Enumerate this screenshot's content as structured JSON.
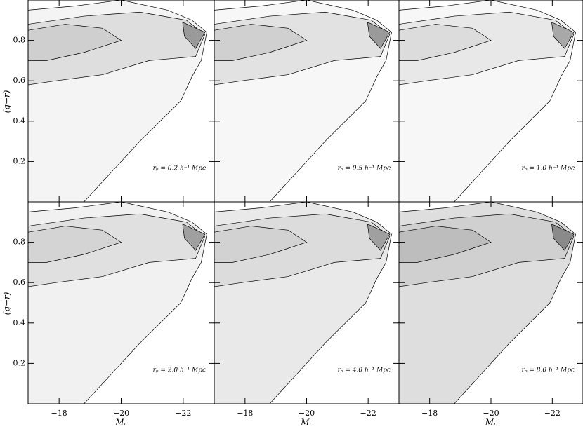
{
  "chart_data": {
    "type": "contour",
    "xlabel": "Mᵣ",
    "ylabel": "(g−r)",
    "xlim": [
      -17,
      -23
    ],
    "ylim": [
      0,
      1
    ],
    "xticks": [
      {
        "value": -18,
        "label": "−18"
      },
      {
        "value": -20,
        "label": "−20"
      },
      {
        "value": -22,
        "label": "−22"
      }
    ],
    "yticks": [
      0.2,
      0.4,
      0.6,
      0.8
    ],
    "panels": [
      {
        "annotation": "rₚ = 0.2 h⁻¹ Mpc"
      },
      {
        "annotation": "rₚ = 0.5 h⁻¹ Mpc"
      },
      {
        "annotation": "rₚ = 1.0 h⁻¹ Mpc"
      },
      {
        "annotation": "rₚ = 2.0 h⁻¹ Mpc"
      },
      {
        "annotation": "rₚ = 4.0 h⁻¹ Mpc"
      },
      {
        "annotation": "rₚ = 8.0 h⁻¹ Mpc"
      }
    ]
  }
}
